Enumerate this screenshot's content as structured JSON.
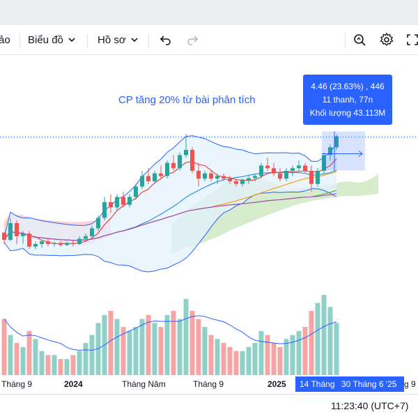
{
  "toolbar": {
    "cut_label": "ảo",
    "chart_menu_label": "Biểu đồ",
    "profile_menu_label": "Hồ sơ",
    "icons": [
      "chevron-down-icon",
      "undo-icon",
      "redo-icon",
      "zoom-search-icon",
      "gear-icon",
      "fullscreen-icon"
    ]
  },
  "annotation": {
    "headline": "CP tăng 20% từ bài phân tích"
  },
  "tooltip": {
    "line1": "4.46 (23.63%) , 446",
    "line2": "11 thanh, 77n",
    "line3": "Khối lượng 43.113M"
  },
  "x_axis": {
    "labels": [
      "Tháng 9",
      "2024",
      "Tháng Năm",
      "Tháng 9",
      "2025"
    ],
    "cut_label": "g 9",
    "range_start": "14 Tháng",
    "range_end": "30 Tháng 6 '25"
  },
  "footer": {
    "time": "11:23:40 (UTC+7)"
  },
  "colors": {
    "up": "#26a69a",
    "down": "#ef5350",
    "accent": "#2962ff",
    "cloud_bear": "#f8c4c4",
    "cloud_bull": "#cde6c1",
    "bollinger_fill": "#e3f2fd"
  },
  "chart_data": {
    "type": "candlestick",
    "title": "",
    "candles": [
      [
        2.62,
        2.62,
        2.4,
        2.48
      ],
      [
        2.48,
        2.9,
        2.45,
        2.8
      ],
      [
        2.8,
        2.85,
        2.4,
        2.55
      ],
      [
        2.55,
        2.65,
        2.4,
        2.6
      ],
      [
        2.6,
        2.65,
        2.3,
        2.35
      ],
      [
        2.35,
        2.45,
        2.3,
        2.4
      ],
      [
        2.4,
        2.48,
        2.33,
        2.45
      ],
      [
        2.45,
        2.5,
        2.35,
        2.4
      ],
      [
        2.4,
        2.45,
        2.35,
        2.42
      ],
      [
        2.42,
        2.45,
        2.35,
        2.38
      ],
      [
        2.38,
        2.45,
        2.36,
        2.42
      ],
      [
        2.42,
        2.46,
        2.35,
        2.4
      ],
      [
        2.4,
        2.55,
        2.38,
        2.5
      ],
      [
        2.5,
        2.6,
        2.45,
        2.55
      ],
      [
        2.55,
        2.75,
        2.5,
        2.7
      ],
      [
        2.7,
        2.95,
        2.65,
        2.9
      ],
      [
        2.9,
        3.3,
        2.85,
        3.2
      ],
      [
        3.2,
        3.35,
        3.0,
        3.1
      ],
      [
        3.1,
        3.35,
        3.05,
        3.3
      ],
      [
        3.3,
        3.4,
        3.1,
        3.15
      ],
      [
        3.15,
        3.35,
        3.1,
        3.3
      ],
      [
        3.3,
        3.55,
        3.25,
        3.5
      ],
      [
        3.5,
        3.8,
        3.45,
        3.7
      ],
      [
        3.7,
        3.85,
        3.55,
        3.6
      ],
      [
        3.6,
        3.8,
        3.55,
        3.75
      ],
      [
        3.75,
        3.9,
        3.65,
        3.7
      ],
      [
        3.7,
        4.0,
        3.65,
        3.95
      ],
      [
        3.95,
        4.1,
        3.8,
        3.85
      ],
      [
        3.85,
        4.15,
        3.8,
        4.1
      ],
      [
        4.1,
        4.5,
        4.05,
        4.2
      ],
      [
        4.2,
        4.25,
        3.75,
        3.8
      ],
      [
        3.8,
        3.95,
        3.5,
        3.65
      ],
      [
        3.65,
        3.8,
        3.6,
        3.75
      ],
      [
        3.75,
        3.8,
        3.6,
        3.65
      ],
      [
        3.65,
        3.75,
        3.55,
        3.7
      ],
      [
        3.7,
        3.75,
        3.6,
        3.65
      ],
      [
        3.65,
        3.7,
        3.55,
        3.6
      ],
      [
        3.6,
        3.65,
        3.5,
        3.55
      ],
      [
        3.55,
        3.65,
        3.5,
        3.62
      ],
      [
        3.62,
        3.7,
        3.55,
        3.66
      ],
      [
        3.66,
        3.75,
        3.6,
        3.7
      ],
      [
        3.7,
        3.95,
        3.65,
        3.9
      ],
      [
        3.9,
        4.05,
        3.8,
        3.85
      ],
      [
        3.85,
        3.95,
        3.7,
        3.75
      ],
      [
        3.75,
        3.85,
        3.6,
        3.65
      ],
      [
        3.65,
        3.85,
        3.6,
        3.8
      ],
      [
        3.8,
        3.9,
        3.7,
        3.85
      ],
      [
        3.85,
        4.0,
        3.8,
        3.9
      ],
      [
        3.9,
        3.95,
        3.75,
        3.8
      ],
      [
        3.8,
        3.9,
        3.4,
        3.55
      ],
      [
        3.55,
        3.85,
        3.5,
        3.8
      ],
      [
        3.8,
        4.15,
        3.75,
        4.1
      ],
      [
        4.1,
        4.3,
        4.0,
        4.25
      ],
      [
        4.25,
        4.5,
        4.2,
        4.46
      ]
    ],
    "volume": [
      70,
      50,
      40,
      35,
      55,
      45,
      30,
      25,
      25,
      20,
      20,
      25,
      30,
      40,
      50,
      65,
      75,
      80,
      70,
      60,
      55,
      60,
      70,
      75,
      65,
      60,
      75,
      80,
      70,
      95,
      80,
      70,
      60,
      50,
      45,
      40,
      35,
      30,
      30,
      35,
      40,
      55,
      50,
      40,
      35,
      45,
      50,
      55,
      60,
      80,
      90,
      100,
      85,
      65
    ]
  }
}
